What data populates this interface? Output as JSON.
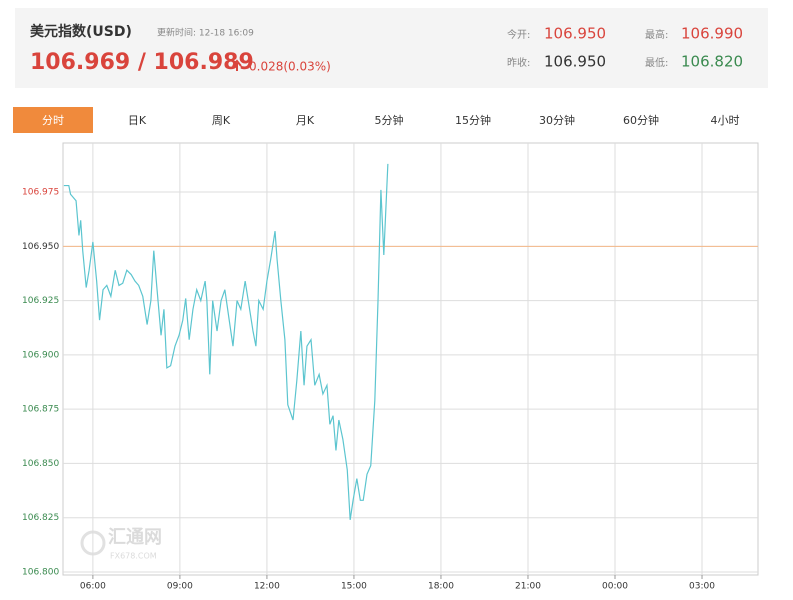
{
  "header": {
    "title": "美元指数(USD)",
    "update_label": "更新时间: 12-18 16:09",
    "price": "106.969 / 106.989",
    "change": "0.028(0.03%)",
    "quotes": [
      {
        "label": "今开:",
        "value": "106.950"
      },
      {
        "label": "最高:",
        "value": "106.990"
      },
      {
        "label": "昨收:",
        "value": "106.950"
      },
      {
        "label": "最低:",
        "value": "106.820"
      }
    ]
  },
  "tabs": [
    "分时",
    "日K",
    "周K",
    "月K",
    "5分钟",
    "15分钟",
    "30分钟",
    "60分钟",
    "4小时"
  ],
  "watermark": {
    "name": "汇通网",
    "site": "FX678.COM"
  },
  "chart_data": {
    "type": "line",
    "color": "#5cc5cf",
    "x": [
      5,
      5.17,
      5.23,
      5.42,
      5.52,
      5.58,
      5.65,
      5.77,
      5.87,
      6,
      6.13,
      6.23,
      6.35,
      6.48,
      6.62,
      6.77,
      6.9,
      7.03,
      7.17,
      7.32,
      7.45,
      7.58,
      7.72,
      7.87,
      8,
      8.1,
      8.2,
      8.35,
      8.45,
      8.55,
      8.68,
      8.83,
      8.97,
      9.1,
      9.2,
      9.32,
      9.45,
      9.58,
      9.72,
      9.87,
      9.93,
      10.03,
      10.13,
      10.28,
      10.42,
      10.55,
      10.7,
      10.83,
      10.97,
      11.1,
      11.25,
      11.38,
      11.52,
      11.62,
      11.72,
      11.87,
      12,
      12.13,
      12.28,
      12.35,
      12.48,
      12.62,
      12.72,
      12.9,
      13.03,
      13.17,
      13.28,
      13.38,
      13.52,
      13.65,
      13.8,
      13.93,
      14.07,
      14.17,
      14.28,
      14.38,
      14.48,
      14.62,
      14.77,
      14.87,
      14.97,
      15.1,
      15.22,
      15.32,
      15.45,
      15.58,
      15.72,
      15.83,
      15.93,
      16.03,
      16.17
    ],
    "values": [
      106.978,
      106.978,
      106.974,
      106.971,
      106.955,
      106.962,
      106.948,
      106.931,
      106.939,
      106.952,
      106.934,
      106.916,
      106.93,
      106.932,
      106.927,
      106.939,
      106.932,
      106.933,
      106.939,
      106.937,
      106.934,
      106.932,
      106.927,
      106.914,
      106.925,
      106.948,
      106.932,
      106.909,
      106.921,
      106.894,
      106.895,
      106.904,
      106.909,
      106.916,
      106.926,
      106.907,
      106.921,
      106.93,
      106.925,
      106.934,
      106.925,
      106.891,
      106.925,
      106.911,
      106.925,
      106.93,
      106.916,
      106.904,
      106.925,
      106.921,
      106.934,
      106.923,
      106.911,
      106.904,
      106.925,
      106.921,
      106.934,
      106.944,
      106.957,
      106.944,
      106.925,
      106.907,
      106.877,
      106.87,
      106.888,
      106.911,
      106.886,
      106.904,
      106.907,
      106.886,
      106.891,
      106.882,
      106.886,
      106.868,
      106.872,
      106.856,
      106.87,
      106.861,
      106.847,
      106.824,
      106.833,
      106.843,
      106.833,
      106.833,
      106.845,
      106.849,
      106.879,
      106.925,
      106.976,
      106.946,
      106.988
    ],
    "xlim": [
      4.97,
      28.93
    ],
    "xticks": [
      {
        "value": 6,
        "label": "06:00"
      },
      {
        "value": 9,
        "label": "09:00"
      },
      {
        "value": 12,
        "label": "12:00"
      },
      {
        "value": 15,
        "label": "15:00"
      },
      {
        "value": 18,
        "label": "18:00"
      },
      {
        "value": 21,
        "label": "21:00"
      },
      {
        "value": 24,
        "label": "00:00"
      },
      {
        "value": 27,
        "label": "03:00"
      }
    ],
    "ylim": [
      106.7986,
      106.9976
    ],
    "yticks": [
      106.975,
      {
        "value": 106.95,
        "label": "106.950"
      },
      106.925,
      {
        "value": 106.9,
        "label": "106.900"
      },
      106.875,
      {
        "value": 106.85,
        "label": "106.850"
      },
      106.825,
      {
        "value": 106.8,
        "label": "106.800"
      }
    ],
    "reference_value": 106.95,
    "reference_color": "#f5b889",
    "tick_colors": {
      "above": "#d9443c",
      "at": "#333333",
      "below": "#3a8a4f"
    },
    "grid": true
  }
}
